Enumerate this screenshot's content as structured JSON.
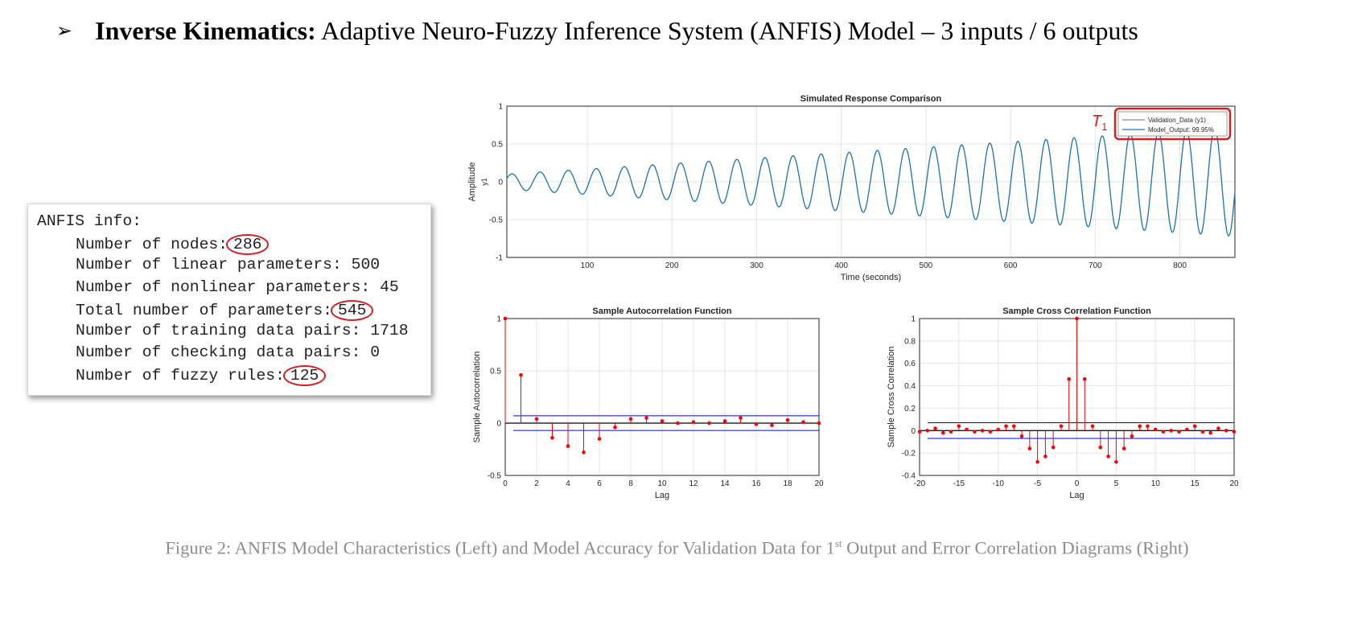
{
  "heading": {
    "bullet": "➢",
    "bold": "Inverse Kinematics:",
    "rest": " Adaptive Neuro-Fuzzy Inference System (ANFIS) Model – 3 inputs / 6 outputs"
  },
  "anfis_info": {
    "title": "ANFIS info:",
    "lines": [
      {
        "label": "Number of nodes:",
        "value": "286",
        "circled": true
      },
      {
        "label": "Number of linear parameters:",
        "value": "500",
        "circled": false
      },
      {
        "label": "Number of nonlinear parameters:",
        "value": "45",
        "circled": false
      },
      {
        "label": "Total number of parameters:",
        "value": "545",
        "circled": true
      },
      {
        "label": "Number of training data pairs:",
        "value": "1718",
        "circled": false
      },
      {
        "label": "Number of checking data pairs:",
        "value": "0",
        "circled": false
      },
      {
        "label": "Number of fuzzy rules:",
        "value": "125",
        "circled": true
      }
    ],
    "highlight_color": "#d81e1e"
  },
  "caption": {
    "before": "Figure 2: ANFIS Model Characteristics (Left) and Model Accuracy for Validation Data for 1",
    "sup": "st",
    "after": " Output and Error Correlation Diagrams (Right)"
  },
  "chart_data": [
    {
      "type": "line",
      "title": "Simulated Response Comparison",
      "xlabel": "Time (seconds)",
      "ylabel": "Amplitude",
      "ylabel2": "y1",
      "xlim": [
        5,
        865
      ],
      "ylim": [
        -1,
        1
      ],
      "x_ticks": [
        100,
        200,
        300,
        400,
        500,
        600,
        700,
        800
      ],
      "y_ticks": [
        -1,
        -0.5,
        0,
        0.5,
        1
      ],
      "grid": true,
      "legend_position": "top-right",
      "legend_highlight": true,
      "annotation": {
        "symbol": "T",
        "subscript": "1"
      },
      "series": [
        {
          "name": "Validation_Data (y1)",
          "color": "#8a8a8a"
        },
        {
          "name": "Model_Output: 99.95%",
          "color": "#1f77b4"
        }
      ],
      "signal": {
        "period": 33.2,
        "amp_start": 0.1,
        "amp_end": 0.72,
        "first_peak_x": 11,
        "t_start": 5,
        "t_end": 865
      }
    },
    {
      "type": "stem",
      "title": "Sample Autocorrelation Function",
      "xlabel": "Lag",
      "ylabel": "Sample Autocorrelation",
      "xlim": [
        0,
        20
      ],
      "ylim": [
        -0.5,
        1
      ],
      "x_ticks": [
        0,
        2,
        4,
        6,
        8,
        10,
        12,
        14,
        16,
        18,
        20
      ],
      "y_ticks": [
        -0.5,
        0,
        0.5,
        1
      ],
      "grid": true,
      "confidence_bound": 0.07,
      "lags": [
        0,
        1,
        2,
        3,
        4,
        5,
        6,
        7,
        8,
        9,
        10,
        11,
        12,
        13,
        14,
        15,
        16,
        17,
        18,
        19,
        20
      ],
      "values": [
        1.0,
        0.46,
        0.04,
        -0.14,
        -0.22,
        -0.28,
        -0.15,
        -0.04,
        0.04,
        0.05,
        0.02,
        0.0,
        0.01,
        0.0,
        0.02,
        0.05,
        -0.01,
        -0.02,
        0.03,
        0.01,
        0.0
      ]
    },
    {
      "type": "stem",
      "title": "Sample Cross Correlation Function",
      "xlabel": "Lag",
      "ylabel": "Sample Cross Correlation",
      "xlim": [
        -20,
        20
      ],
      "ylim": [
        -0.4,
        1
      ],
      "x_ticks": [
        -20,
        -15,
        -10,
        -5,
        0,
        5,
        10,
        15,
        20
      ],
      "y_ticks": [
        -0.4,
        -0.2,
        0,
        0.2,
        0.4,
        0.6,
        0.8,
        1
      ],
      "grid": true,
      "confidence_bound": 0.07,
      "lags": [
        -20,
        -19,
        -18,
        -17,
        -16,
        -15,
        -14,
        -13,
        -12,
        -11,
        -10,
        -9,
        -8,
        -7,
        -6,
        -5,
        -4,
        -3,
        -2,
        -1,
        0,
        1,
        2,
        3,
        4,
        5,
        6,
        7,
        8,
        9,
        10,
        11,
        12,
        13,
        14,
        15,
        16,
        17,
        18,
        19,
        20
      ],
      "values": [
        -0.01,
        0.0,
        0.02,
        -0.02,
        -0.01,
        0.04,
        0.01,
        -0.01,
        0.0,
        -0.01,
        0.01,
        0.04,
        0.04,
        -0.05,
        -0.16,
        -0.28,
        -0.23,
        -0.15,
        0.04,
        0.46,
        1.0,
        0.46,
        0.04,
        -0.15,
        -0.23,
        -0.28,
        -0.16,
        -0.05,
        0.04,
        0.04,
        0.01,
        -0.01,
        0.0,
        -0.01,
        0.01,
        0.04,
        -0.01,
        -0.02,
        0.02,
        0.0,
        -0.01
      ]
    }
  ]
}
